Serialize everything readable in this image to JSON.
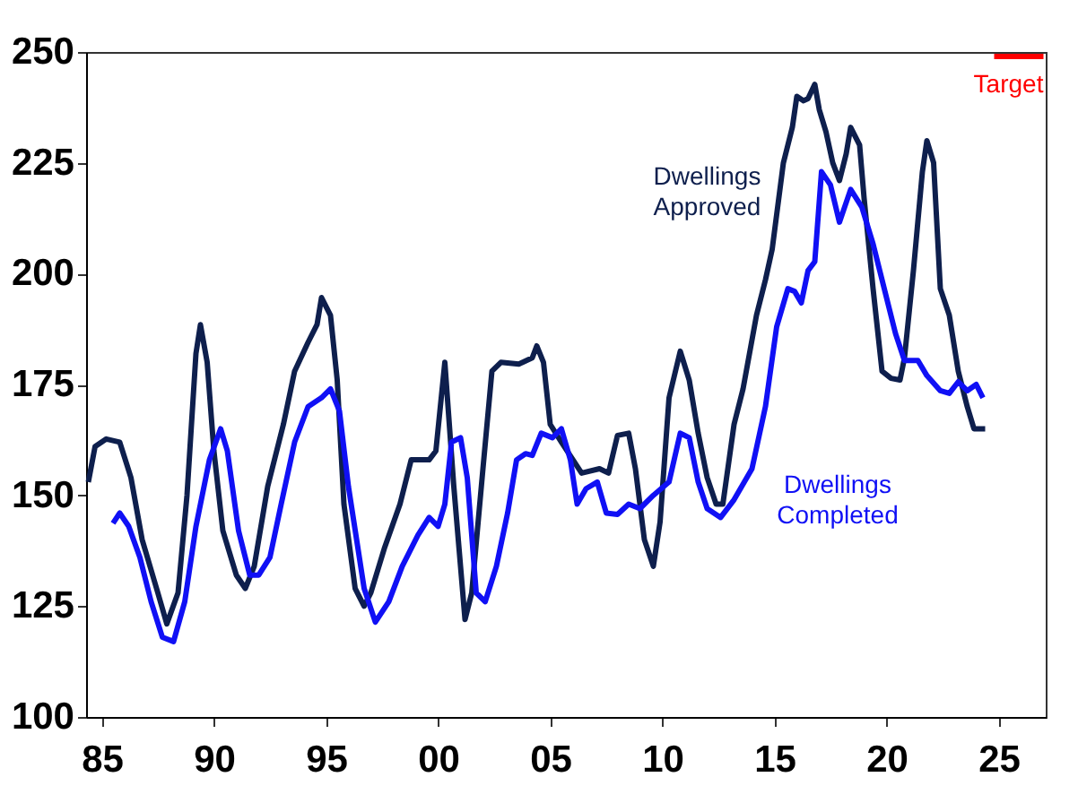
{
  "chart_data": {
    "type": "line",
    "xlim": [
      1984.3,
      2027.1
    ],
    "xticks": [
      {
        "value": 1985,
        "label": "85"
      },
      {
        "value": 1990,
        "label": "90"
      },
      {
        "value": 1995,
        "label": "95"
      },
      {
        "value": 2000,
        "label": "00"
      },
      {
        "value": 2005,
        "label": "05"
      },
      {
        "value": 2010,
        "label": "10"
      },
      {
        "value": 2015,
        "label": "15"
      },
      {
        "value": 2020,
        "label": "20"
      },
      {
        "value": 2025,
        "label": "25"
      }
    ],
    "ylim": [
      100,
      250
    ],
    "yticks": [
      100,
      125,
      150,
      175,
      200,
      225,
      250
    ],
    "marker": "none",
    "line_style": "solid",
    "series": [
      {
        "name": "Dwellings\nApproved",
        "color": "#0e1f4d",
        "x": [
          1984.4,
          1984.7,
          1985.2,
          1985.8,
          1986.3,
          1986.8,
          1987.5,
          1987.9,
          1988.4,
          1988.8,
          1989.2,
          1989.4,
          1989.7,
          1990.0,
          1990.4,
          1991.0,
          1991.4,
          1991.8,
          1992.4,
          1993.1,
          1993.6,
          1994.2,
          1994.6,
          1994.8,
          1995.2,
          1995.5,
          1995.8,
          1996.3,
          1996.7,
          1997.0,
          1997.6,
          1998.3,
          1998.8,
          1999.6,
          1999.9,
          2000.3,
          2000.7,
          2001.2,
          2001.5,
          2002.0,
          2002.4,
          2002.8,
          2003.6,
          2004.2,
          2004.4,
          2004.7,
          2005.0,
          2005.5,
          2006.4,
          2007.2,
          2007.6,
          2008.0,
          2008.5,
          2008.8,
          2009.2,
          2009.6,
          2009.9,
          2010.3,
          2010.8,
          2011.2,
          2011.6,
          2012.0,
          2012.4,
          2012.7,
          2013.2,
          2013.6,
          2014.2,
          2014.6,
          2014.9,
          2015.4,
          2015.8,
          2016.0,
          2016.3,
          2016.5,
          2016.8,
          2017.0,
          2017.3,
          2017.6,
          2017.9,
          2018.2,
          2018.4,
          2018.8,
          2019.0,
          2019.4,
          2019.8,
          2020.2,
          2020.6,
          2020.8,
          2021.2,
          2021.6,
          2021.8,
          2022.1,
          2022.4,
          2022.8,
          2023.2,
          2023.6,
          2023.9,
          2024.4
        ],
        "values": [
          153,
          161,
          162.7,
          162,
          154,
          140,
          128,
          121,
          128,
          150,
          182,
          188.5,
          180,
          160,
          142,
          132,
          129,
          134,
          152,
          166,
          178,
          184.5,
          188.5,
          194.6,
          190.6,
          176,
          148,
          129,
          125,
          128,
          138,
          148,
          158,
          158,
          160,
          180,
          152,
          122,
          128,
          156,
          178,
          180,
          179.6,
          181,
          183.7,
          180,
          166,
          162,
          155,
          156,
          155,
          163.5,
          164,
          156,
          140,
          134,
          144,
          172,
          182.5,
          176,
          164,
          154,
          148,
          148,
          166,
          174,
          190.6,
          198.6,
          205.5,
          225,
          233,
          240,
          239,
          239.5,
          242.7,
          237,
          232,
          225,
          221,
          227,
          233,
          229,
          217,
          196.6,
          178,
          176.4,
          176,
          181,
          200.7,
          223,
          230,
          225,
          196.6,
          190.6,
          178,
          170,
          165,
          165
        ]
      },
      {
        "name": "Dwellings\nCompleted",
        "color": "#1010f5",
        "x": [
          1985.5,
          1985.8,
          1986.2,
          1986.7,
          1987.2,
          1987.7,
          1988.2,
          1988.7,
          1989.2,
          1989.8,
          1990.3,
          1990.6,
          1991.1,
          1991.6,
          1992.0,
          1992.5,
          1993.0,
          1993.6,
          1994.2,
          1994.8,
          1995.2,
          1995.6,
          1996.0,
          1996.7,
          1997.2,
          1997.8,
          1998.4,
          1999.1,
          1999.6,
          2000.0,
          2000.3,
          2000.6,
          2001.0,
          2001.3,
          2001.7,
          2002.1,
          2002.6,
          2003.1,
          2003.5,
          2003.9,
          2004.2,
          2004.6,
          2005.1,
          2005.5,
          2005.9,
          2006.2,
          2006.6,
          2007.1,
          2007.5,
          2008.0,
          2008.5,
          2009.0,
          2009.6,
          2010.3,
          2010.8,
          2011.2,
          2011.6,
          2012.0,
          2012.6,
          2013.2,
          2014.0,
          2014.6,
          2015.1,
          2015.6,
          2015.9,
          2016.2,
          2016.5,
          2016.8,
          2017.1,
          2017.5,
          2017.9,
          2018.4,
          2018.9,
          2019.4,
          2019.9,
          2020.4,
          2020.8,
          2021.4,
          2021.8,
          2022.4,
          2022.8,
          2023.2,
          2023.6,
          2024.0,
          2024.3
        ],
        "values": [
          143.7,
          146,
          143,
          136,
          126,
          118,
          117,
          126,
          143,
          158,
          165,
          160,
          142,
          132,
          132,
          136,
          148,
          162,
          170,
          172,
          174,
          169,
          152,
          129,
          121.4,
          126,
          134,
          141,
          145,
          143,
          148,
          162,
          163,
          154,
          128,
          126,
          134,
          146,
          158,
          159.4,
          159,
          164,
          163,
          165,
          158,
          148,
          151.5,
          153,
          146,
          145.7,
          148,
          147,
          150,
          153,
          164,
          163,
          153,
          147,
          145,
          149,
          156,
          170,
          188,
          196.6,
          196,
          193.4,
          200.7,
          202.7,
          223,
          220,
          211.6,
          219,
          215,
          206.7,
          196.6,
          186.5,
          180.4,
          180.4,
          177,
          173.6,
          173,
          175.6,
          173.6,
          175,
          172
        ]
      },
      {
        "name": "Target",
        "color": "#ff0000",
        "x": [
          2024.8,
          2027.0
        ],
        "values": [
          249,
          249
        ]
      }
    ]
  }
}
